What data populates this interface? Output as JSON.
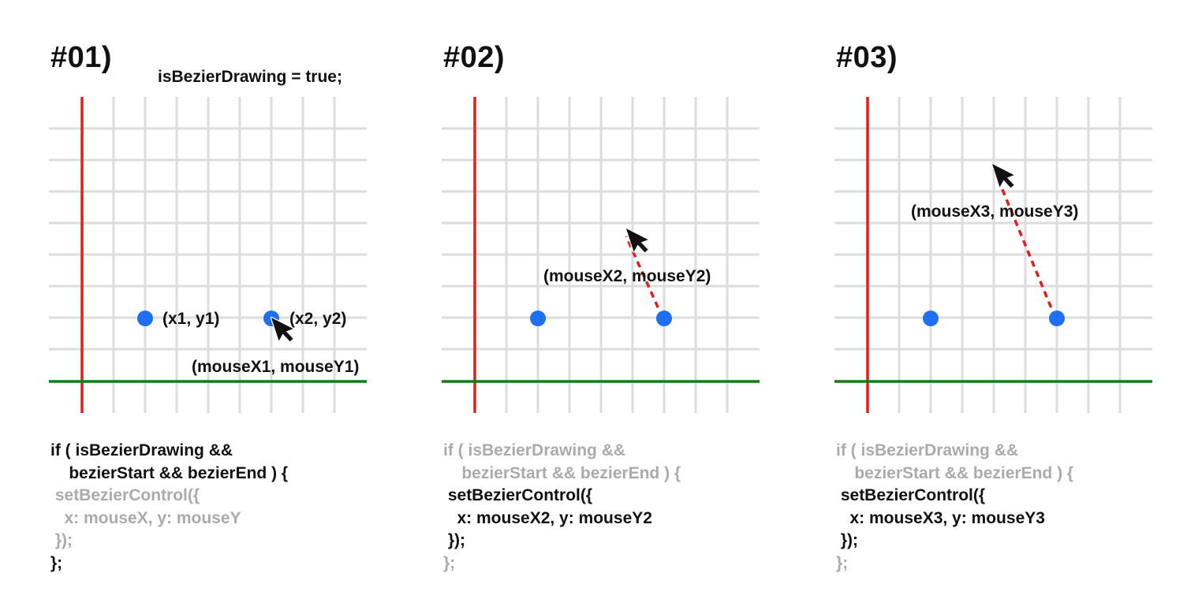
{
  "panels": [
    {
      "title": "#01)",
      "subtitle": "isBezierDrawing = true;",
      "labels": {
        "p1": "(x1, y1)",
        "p2": "(x2, y2)",
        "mouse": "(mouseX1, mouseY1)"
      },
      "code": [
        {
          "text": "if ( isBezierDrawing &&",
          "active": true
        },
        {
          "text": "    bezierStart && bezierEnd ) {",
          "active": true
        },
        {
          "text": " setBezierControl({",
          "active": false
        },
        {
          "text": "   x: mouseX, y: mouseY",
          "active": false
        },
        {
          "text": " });",
          "active": false
        },
        {
          "text": "};",
          "active": true
        }
      ]
    },
    {
      "title": "#02)",
      "labels": {
        "mouse": "(mouseX2, mouseY2)"
      },
      "code": [
        {
          "text": "if ( isBezierDrawing &&",
          "active": false
        },
        {
          "text": "    bezierStart && bezierEnd ) {",
          "active": false
        },
        {
          "text": " setBezierControl({",
          "active": true
        },
        {
          "text": "   x: mouseX2, y: mouseY2",
          "active": true
        },
        {
          "text": " });",
          "active": true
        },
        {
          "text": "};",
          "active": false
        }
      ]
    },
    {
      "title": "#03)",
      "labels": {
        "mouse": "(mouseX3, mouseY3)"
      },
      "code": [
        {
          "text": "if ( isBezierDrawing &&",
          "active": false
        },
        {
          "text": "    bezierStart && bezierEnd ) {",
          "active": false
        },
        {
          "text": " setBezierControl({",
          "active": true
        },
        {
          "text": "   x: mouseX3, y: mouseY3",
          "active": true
        },
        {
          "text": " });",
          "active": true
        },
        {
          "text": "};",
          "active": false
        }
      ]
    }
  ],
  "colors": {
    "grid": "#dddddd",
    "y_axis": "#e41e1e",
    "x_axis": "#1a7a12",
    "point": "#1f6ff0",
    "guide": "#e41e1e",
    "cursor": "#111111"
  }
}
